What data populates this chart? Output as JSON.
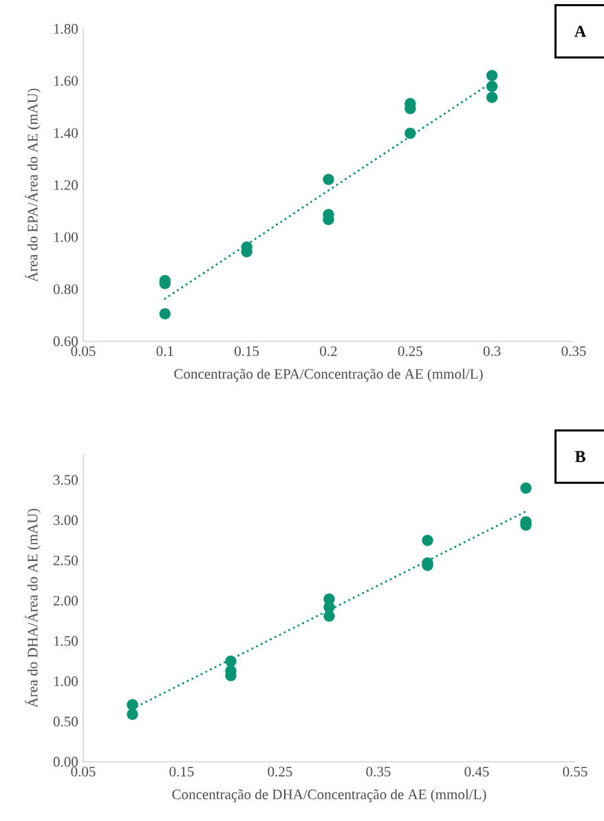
{
  "chart_data": [
    {
      "type": "scatter",
      "xlabel": "Concentração de EPA/Concentração de AE (mmol/L)",
      "ylabel": "Área do EPA/Área do AE (mAU)",
      "annotations": [
        "**A**"
      ],
      "xlim": [
        0.05,
        0.35
      ],
      "xticks": [
        0.05,
        0.1,
        0.15,
        0.2,
        0.25,
        0.3,
        0.35
      ],
      "ylim": [
        0.6,
        1.8
      ],
      "yticks": [
        {
          "value": 0.6,
          "label": "0.60"
        },
        {
          "value": 0.8,
          "label": "0.80"
        },
        {
          "value": 1.0,
          "label": "1.00"
        },
        {
          "value": 1.2,
          "label": "1.20"
        },
        {
          "value": 1.4,
          "label": "1.40"
        },
        {
          "value": 1.6,
          "label": "1.60"
        },
        {
          "value": 1.8,
          "label": "1.80"
        }
      ],
      "grid": false,
      "series": [
        {
          "type": "scatter",
          "color": "#0a9474",
          "marker": "circle",
          "x": [
            0.1,
            0.1,
            0.1,
            0.15,
            0.15,
            0.2,
            0.2,
            0.2,
            0.25,
            0.25,
            0.25,
            0.3,
            0.3,
            0.3
          ],
          "values": [
            0.833,
            0.822,
            0.706,
            0.962,
            0.944,
            1.222,
            1.087,
            1.068,
            1.513,
            1.494,
            1.399,
            1.621,
            1.579,
            1.537
          ]
        },
        {
          "type": "line",
          "color": "#0a9474",
          "marker": "none",
          "line_style": "dotted",
          "x": [
            0.1,
            0.3
          ],
          "values": [
            0.764,
            1.595
          ]
        }
      ]
    },
    {
      "type": "scatter",
      "xlabel": "Concentração de DHA/Concentração de AE (mmol/L)",
      "ylabel": "Área do DHA/Área do AE (mAU)",
      "annotations": [
        "**B**"
      ],
      "xlim": [
        0.05,
        0.55
      ],
      "xticks": [
        0.05,
        0.15,
        0.25,
        0.35,
        0.45,
        0.55
      ],
      "ylim": [
        0,
        3.82
      ],
      "yticks": [
        {
          "value": 0,
          "label": "0.00"
        },
        {
          "value": 0.5,
          "label": "0.50"
        },
        {
          "value": 1.0,
          "label": "1.00"
        },
        {
          "value": 1.5,
          "label": "1.50"
        },
        {
          "value": 2.0,
          "label": "2.00"
        },
        {
          "value": 2.5,
          "label": "2.50"
        },
        {
          "value": 3.0,
          "label": "3.00"
        },
        {
          "value": 3.5,
          "label": "3.50"
        }
      ],
      "grid": false,
      "series": [
        {
          "type": "scatter",
          "color": "#0a9474",
          "marker": "circle",
          "x": [
            0.1,
            0.1,
            0.2,
            0.2,
            0.2,
            0.3,
            0.3,
            0.3,
            0.4,
            0.4,
            0.4,
            0.5,
            0.5,
            0.5
          ],
          "values": [
            0.71,
            0.59,
            1.25,
            1.13,
            1.07,
            2.02,
            1.92,
            1.81,
            2.75,
            2.47,
            2.44,
            3.4,
            2.98,
            2.94
          ]
        },
        {
          "type": "line",
          "color": "#0a9474",
          "marker": "none",
          "line_style": "dotted",
          "x": [
            0.1,
            0.5
          ],
          "values": [
            0.66,
            3.11
          ]
        }
      ]
    }
  ]
}
